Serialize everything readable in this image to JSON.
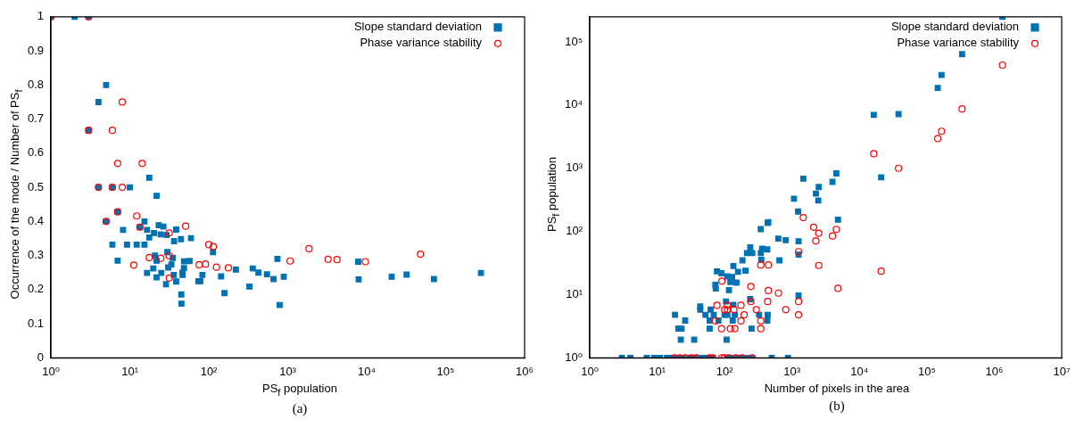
{
  "chart_data": [
    {
      "type": "scatter",
      "xlabel": "PS$_{f}$ population",
      "ylabel": "Occurrence of the mode / Number of PS$_{f}$",
      "annotations": [
        "(a)"
      ],
      "log": "x",
      "legend": "top right",
      "grid": false,
      "xlim": [
        1,
        1000000
      ],
      "xticks": [
        {
          "value": 1,
          "label": "10⁰"
        },
        {
          "value": 10,
          "label": "10¹"
        },
        {
          "value": 100,
          "label": "10²"
        },
        {
          "value": 1000,
          "label": "10³"
        },
        {
          "value": 10000,
          "label": "10⁴"
        },
        {
          "value": 100000,
          "label": "10⁵"
        },
        {
          "value": 1000000,
          "label": "10⁶"
        }
      ],
      "ylim": [
        0,
        1
      ],
      "yticks": [
        0,
        0.1,
        0.2,
        0.3,
        0.4,
        0.5,
        0.6,
        0.7,
        0.8,
        0.9,
        1
      ],
      "series": [
        {
          "name": "Slope standard deviation",
          "color": "#0072b2",
          "marker": "square",
          "x": [
            1,
            2,
            3,
            5,
            4,
            3,
            17.6,
            4,
            6,
            10,
            21.8,
            5,
            7,
            15.3,
            13.4,
            8.2,
            16.5,
            17.6,
            23.2,
            20.2,
            24.5,
            26.6,
            29.2,
            38.6,
            44.4,
            36.3,
            59.4,
            6,
            9.2,
            12.2,
            15.3,
            113,
            7,
            20.8,
            21.8,
            29.8,
            35,
            30.6,
            33.6,
            48.5,
            57,
            48.5,
            19.8,
            16.5,
            25,
            21.8,
            46.6,
            83,
            73.7,
            78,
            36,
            38.6,
            28.7,
            143,
            44.8,
            45,
            158,
            220,
            327,
            360,
            425,
            545,
            660,
            740,
            890,
            790,
            7900,
            7800,
            20700,
            32000,
            71000,
            280000,
            46.5
          ],
          "values": [
            1,
            1,
            1,
            0.8,
            0.75,
            0.667,
            0.528,
            0.5,
            0.5,
            0.5,
            0.475,
            0.4,
            0.428,
            0.4,
            0.383,
            0.375,
            0.375,
            0.353,
            0.389,
            0.366,
            0.362,
            0.385,
            0.36,
            0.376,
            0.348,
            0.342,
            0.351,
            0.332,
            0.332,
            0.332,
            0.332,
            0.31,
            0.285,
            0.3,
            0.285,
            0.31,
            0.293,
            0.265,
            0.274,
            0.283,
            0.284,
            0.263,
            0.262,
            0.249,
            0.249,
            0.236,
            0.243,
            0.243,
            0.225,
            0.225,
            0.243,
            0.224,
            0.216,
            0.239,
            0.186,
            0.159,
            0.19,
            0.259,
            0.209,
            0.262,
            0.25,
            0.245,
            0.231,
            0.29,
            0.238,
            0.155,
            0.23,
            0.282,
            0.238,
            0.244,
            0.231,
            0.249,
            0.25
          ]
        },
        {
          "name": "Phase variance stability",
          "color": "#ff0000",
          "marker": "circle",
          "x": [
            1,
            3,
            3,
            8,
            6,
            7,
            14.3,
            4,
            6,
            8,
            5,
            7,
            12.2,
            13.4,
            31.5,
            50.9,
            100,
            114,
            11.2,
            17.6,
            24.7,
            31.5,
            75.5,
            90.7,
            125,
            177,
            31.5,
            1070,
            1860,
            3240,
            4200,
            9600,
            48000
          ],
          "values": [
            1,
            1,
            0.667,
            0.75,
            0.667,
            0.57,
            0.57,
            0.5,
            0.5,
            0.5,
            0.4,
            0.428,
            0.416,
            0.383,
            0.366,
            0.386,
            0.332,
            0.326,
            0.272,
            0.294,
            0.292,
            0.299,
            0.273,
            0.275,
            0.266,
            0.264,
            0.234,
            0.284,
            0.32,
            0.289,
            0.288,
            0.282,
            0.304
          ]
        }
      ]
    },
    {
      "type": "scatter",
      "xlabel": "Number of pixels in the area",
      "ylabel": "PS$_{f}$ population",
      "annotations": [
        "(b)"
      ],
      "log": "xy",
      "legend": "top right",
      "grid": false,
      "xlim": [
        1,
        10000000
      ],
      "xticks": [
        {
          "value": 1,
          "label": "10⁰"
        },
        {
          "value": 10,
          "label": "10¹"
        },
        {
          "value": 100,
          "label": "10²"
        },
        {
          "value": 1000,
          "label": "10³"
        },
        {
          "value": 10000,
          "label": "10⁴"
        },
        {
          "value": 100000,
          "label": "10⁵"
        },
        {
          "value": 1000000,
          "label": "10⁶"
        },
        {
          "value": 10000000,
          "label": "10⁷"
        }
      ],
      "ylim": [
        1,
        250000
      ],
      "yticks": [
        {
          "value": 1,
          "label": "10⁰"
        },
        {
          "value": 10,
          "label": "10¹"
        },
        {
          "value": 100,
          "label": "10²"
        },
        {
          "value": 1000,
          "label": "10³"
        },
        {
          "value": 10000,
          "label": "10⁴"
        },
        {
          "value": 100000,
          "label": "10⁵"
        }
      ],
      "series": [
        {
          "name": "Slope standard deviation",
          "color": "#0072b2",
          "marker": "square",
          "x": [
            1320000,
            333000,
            165000,
            145000,
            16300,
            38000,
            21000,
            4540,
            3980,
            4800,
            1470,
            2490,
            2260,
            2450,
            1070,
            1230,
            1250,
            807,
            1250,
            1250,
            870,
            344,
            435,
            626,
            240,
            215,
            257,
            344,
            430,
            360,
            184,
            135,
            158,
            204,
            77,
            90,
            110,
            129,
            122,
            150,
            73,
            74,
            116,
            350,
            650,
            240,
            435,
            325,
            430,
            251,
            105,
            43.5,
            43.5,
            62,
            52,
            69,
            100,
            110,
            135,
            142,
            60,
            81,
            132,
            18.4,
            26,
            23,
            20.6,
            60,
            22.4,
            35.4,
            107,
            445,
            3,
            4,
            7,
            9,
            11,
            14,
            17,
            20,
            24,
            30,
            36,
            45,
            55,
            65,
            110,
            130,
            150,
            180,
            210,
            250,
            500
          ],
          "values": [
            250000,
            64000,
            30000,
            18700,
            7000,
            7200,
            720,
            830,
            610,
            154,
            685,
            505,
            398,
            310,
            330,
            207,
            70,
            73,
            43,
            9.7,
            1,
            109,
            137,
            77,
            56,
            45.5,
            45.5,
            45.5,
            52,
            53.6,
            35,
            28.4,
            23,
            24,
            23.4,
            21.8,
            19.5,
            19,
            15.9,
            15.5,
            14.3,
            12.5,
            11.8,
            35.6,
            35,
            8.5,
            4.8,
            4.8,
            3.9,
            2.9,
            7.8,
            6.5,
            5.8,
            5.8,
            4.8,
            4.8,
            4.8,
            4.8,
            6.9,
            4.8,
            3.9,
            3.9,
            3.9,
            4.8,
            3.9,
            2.9,
            2.9,
            2.9,
            1.94,
            1.94,
            1.94,
            140,
            1,
            1,
            1,
            1,
            1,
            1,
            1,
            1,
            1,
            1,
            1,
            1,
            1,
            1,
            1,
            1,
            1,
            1,
            1,
            1,
            1
          ]
        },
        {
          "name": "Phase variance stability",
          "color": "#ff0000",
          "marker": "circle",
          "x": [
            1320000,
            333000,
            165000,
            145000,
            16300,
            38000,
            21000,
            4540,
            3980,
            4800,
            1470,
            2090,
            2490,
            2260,
            2490,
            1250,
            1250,
            1250,
            807,
            91,
            245,
            445,
            630,
            435,
            245,
            295,
            195,
            344,
            344,
            175,
            77,
            110,
            100,
            110,
            138,
            175,
            73,
            90,
            122,
            142,
            344,
            445,
            18,
            21.5,
            26,
            32.5,
            38,
            60,
            67,
            91,
            100,
            115,
            147,
            181,
            257
          ],
          "values": [
            43000,
            8700,
            3850,
            2950,
            1700,
            1000,
            23.5,
            108,
            85,
            12.6,
            166,
            117,
            94,
            71,
            29,
            48,
            7.8,
            4.8,
            5.8,
            16.4,
            13.5,
            11.6,
            10.6,
            7.8,
            7.8,
            5.8,
            4.8,
            3.85,
            2.9,
            3.85,
            6.8,
            6.8,
            5.8,
            5.8,
            5.8,
            6.8,
            3.85,
            2.9,
            2.9,
            2.9,
            29.5,
            29.5,
            1,
            1,
            1,
            1,
            1,
            1,
            1,
            1,
            1,
            1,
            1,
            1,
            1
          ]
        }
      ]
    }
  ]
}
